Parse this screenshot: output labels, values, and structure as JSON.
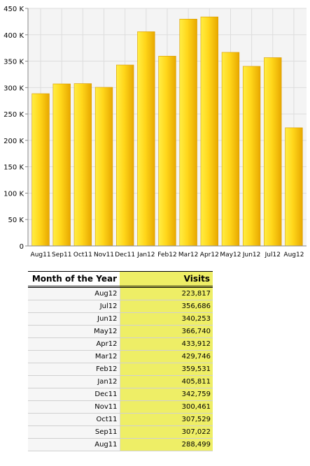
{
  "chart_data": {
    "type": "bar",
    "categories": [
      "Aug11",
      "Sep11",
      "Oct11",
      "Nov11",
      "Dec11",
      "Jan12",
      "Feb12",
      "Mar12",
      "Apr12",
      "May12",
      "Jun12",
      "Jul12",
      "Aug12"
    ],
    "values": [
      288499,
      307022,
      307529,
      300461,
      342759,
      405811,
      359531,
      429746,
      433912,
      366740,
      340253,
      356686,
      223817
    ],
    "ylim": [
      0,
      450000
    ],
    "y_ticks": [
      "0",
      "50 K",
      "100 K",
      "150 K",
      "200 K",
      "250 K",
      "300 K",
      "350 K",
      "400 K",
      "450 K"
    ],
    "grid": true,
    "colors": {
      "bar_light": "#ffee44",
      "bar_dark": "#e8a800",
      "plot_bg": "#f4f4f4",
      "grid": "#dddddd"
    }
  },
  "table": {
    "headers": [
      "Month of the Year",
      "Visits"
    ],
    "rows": [
      [
        "Aug12",
        "223,817"
      ],
      [
        "Jul12",
        "356,686"
      ],
      [
        "Jun12",
        "340,253"
      ],
      [
        "May12",
        "366,740"
      ],
      [
        "Apr12",
        "433,912"
      ],
      [
        "Mar12",
        "429,746"
      ],
      [
        "Feb12",
        "359,531"
      ],
      [
        "Jan12",
        "405,811"
      ],
      [
        "Dec11",
        "342,759"
      ],
      [
        "Nov11",
        "300,461"
      ],
      [
        "Oct11",
        "307,529"
      ],
      [
        "Sep11",
        "307,022"
      ],
      [
        "Aug11",
        "288,499"
      ]
    ],
    "colors": {
      "visits_col": "#eeee66"
    }
  }
}
